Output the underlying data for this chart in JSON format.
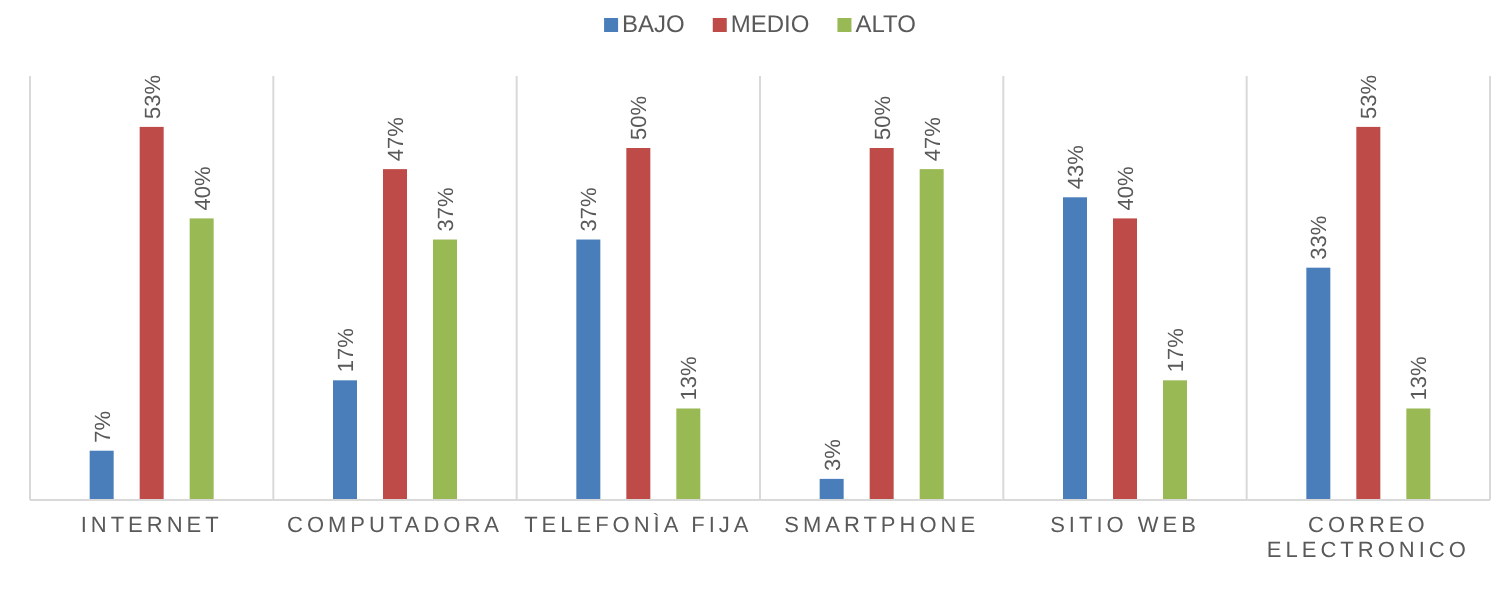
{
  "chart_data": {
    "type": "bar",
    "categories": [
      "INTERNET",
      "COMPUTADORA",
      "TELEFONÌA FIJA",
      "SMARTPHONE",
      "SITIO WEB",
      "CORREO ELECTRONICO"
    ],
    "series": [
      {
        "name": "BAJO",
        "color": "#4a7ebb",
        "values": [
          7,
          17,
          37,
          3,
          43,
          33
        ],
        "value_labels": [
          "7%",
          "17%",
          "37%",
          "3%",
          "43%",
          "33%"
        ]
      },
      {
        "name": "MEDIO",
        "color": "#be4b48",
        "values": [
          53,
          47,
          50,
          50,
          40,
          53
        ],
        "value_labels": [
          "53%",
          "47%",
          "50%",
          "50%",
          "40%",
          "53%"
        ]
      },
      {
        "name": "ALTO",
        "color": "#98b954",
        "values": [
          40,
          37,
          13,
          47,
          17,
          13
        ],
        "value_labels": [
          "40%",
          "37%",
          "13%",
          "47%",
          "17%",
          "13%"
        ]
      }
    ],
    "legend": "top",
    "grid": false
  }
}
